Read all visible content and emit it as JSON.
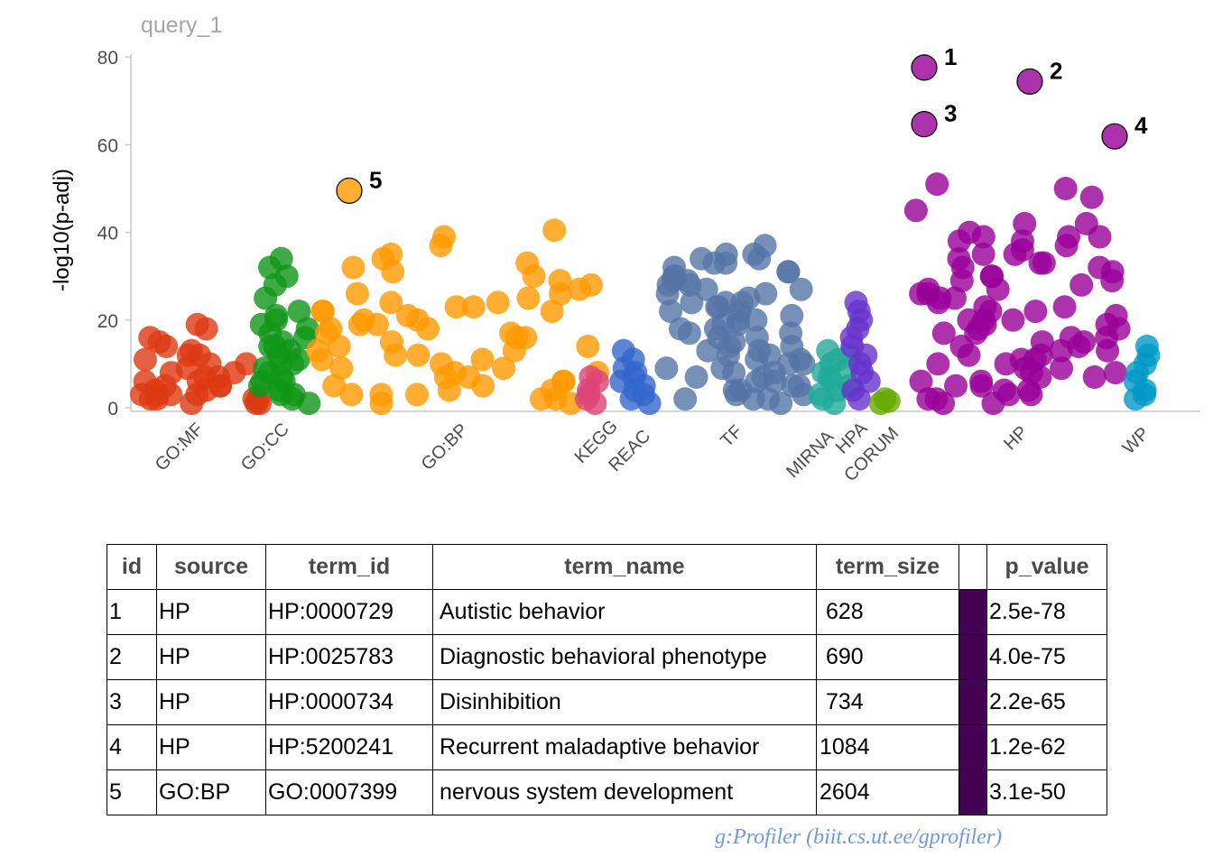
{
  "chart_data": {
    "type": "scatter",
    "title": "query_1",
    "ylabel": "-log10(p-adj)",
    "xlabel": "",
    "ylim": [
      0,
      80
    ],
    "yticks": [
      0,
      20,
      40,
      60,
      80
    ],
    "grid": false,
    "sources": [
      {
        "name": "GO:MF",
        "color": "#dc3912",
        "tick_label": "GO:MF"
      },
      {
        "name": "GO:CC",
        "color": "#109618",
        "tick_label": "GO:CC"
      },
      {
        "name": "GO:BP",
        "color": "#ff9900",
        "tick_label": "GO:BP"
      },
      {
        "name": "KEGG",
        "color": "#dd4477",
        "tick_label": "KEGG"
      },
      {
        "name": "REAC",
        "color": "#3366cc",
        "tick_label": "REAC"
      },
      {
        "name": "TF",
        "color": "#5574a6",
        "tick_label": "TF"
      },
      {
        "name": "MIRNA",
        "color": "#22aa99",
        "tick_label": "MIRNA"
      },
      {
        "name": "HPA",
        "color": "#6633cc",
        "tick_label": "HPA"
      },
      {
        "name": "CORUM",
        "color": "#66aa00",
        "tick_label": "CORUM"
      },
      {
        "name": "HP",
        "color": "#990099",
        "tick_label": "HP"
      },
      {
        "name": "WP",
        "color": "#0099c6",
        "tick_label": "WP"
      }
    ],
    "highlighted": [
      {
        "id": "1",
        "source": "HP",
        "value": 77.6
      },
      {
        "id": "2",
        "source": "HP",
        "value": 74.4
      },
      {
        "id": "3",
        "source": "HP",
        "value": 64.7
      },
      {
        "id": "4",
        "source": "HP",
        "value": 61.9
      },
      {
        "id": "5",
        "source": "GO:BP",
        "value": 49.5
      }
    ],
    "points": {
      "GO:MF": [
        19,
        18,
        16,
        14,
        13,
        12,
        11,
        10,
        10,
        9,
        8,
        8,
        7,
        6,
        6,
        5,
        5,
        4,
        4,
        3,
        3,
        3,
        2,
        2,
        2,
        1,
        1,
        15,
        12,
        7,
        5,
        3,
        2,
        1
      ],
      "GO:CC": [
        34,
        32,
        30,
        28,
        25,
        22,
        21,
        20,
        19,
        18,
        17,
        16,
        15,
        14,
        13,
        12,
        11,
        10,
        9,
        8,
        7,
        6,
        5,
        4,
        3,
        2,
        1,
        14,
        10,
        6,
        3
      ],
      "GO:BP": [
        40.5,
        39,
        37,
        35,
        34,
        33,
        32,
        31,
        30,
        29,
        28,
        27,
        26,
        25,
        24,
        23,
        22,
        21,
        20,
        19,
        18,
        17,
        16,
        15,
        14,
        13,
        12,
        11,
        10,
        9,
        8,
        7,
        6,
        5,
        4,
        3,
        2,
        1,
        24,
        22,
        19,
        16,
        13,
        9,
        6,
        3,
        22,
        20,
        17,
        14,
        11,
        7,
        4,
        2,
        26,
        23,
        18,
        12,
        8,
        5,
        3,
        1
      ],
      "KEGG": [
        7,
        6,
        4,
        3,
        2,
        1
      ],
      "REAC": [
        13,
        11,
        9,
        8,
        7,
        6,
        5,
        4,
        3,
        2,
        1
      ],
      "TF": [
        37,
        35,
        34,
        33,
        32,
        31,
        30,
        29,
        28,
        27,
        26,
        25,
        24,
        23,
        22,
        21,
        20,
        19,
        18,
        17,
        16,
        15,
        14,
        13,
        12,
        11,
        10,
        9,
        8,
        7,
        6,
        5,
        4,
        3,
        2,
        1,
        33,
        30,
        27,
        24,
        20,
        16,
        12,
        8,
        4,
        35,
        31,
        26,
        22,
        18,
        14,
        10,
        6,
        2,
        34,
        29,
        24,
        19,
        13,
        9,
        5,
        3,
        28,
        23,
        17,
        11,
        7,
        2
      ],
      "MIRNA": [
        13,
        12,
        11,
        10,
        9,
        8,
        7,
        6,
        5,
        4,
        3,
        2,
        1
      ],
      "HPA": [
        24,
        22,
        20,
        18,
        16,
        14,
        12,
        10,
        8,
        6,
        4,
        2
      ],
      "CORUM": [
        2,
        1.5,
        1
      ],
      "HP": [
        51,
        50,
        48,
        45,
        42,
        40,
        39,
        38,
        37,
        35,
        34,
        33,
        32,
        31,
        30,
        29,
        28,
        27,
        26,
        25,
        24,
        23,
        22,
        21,
        20,
        19,
        18,
        17,
        16,
        15,
        14,
        13,
        12,
        11,
        10,
        9,
        8,
        7,
        6,
        5,
        4,
        3,
        2,
        1,
        42,
        39,
        38,
        36,
        33,
        30,
        27,
        25,
        22,
        19,
        16,
        13,
        10,
        7,
        4,
        2,
        39,
        35,
        32,
        29,
        26,
        23,
        20,
        18,
        15,
        12,
        9,
        6,
        3,
        1,
        20,
        17,
        14,
        11,
        8,
        5
      ],
      "WP": [
        14,
        12,
        10,
        8,
        6,
        4,
        3,
        2
      ]
    }
  },
  "table": {
    "headers": [
      "id",
      "source",
      "term_id",
      "term_name",
      "term_size",
      "",
      "p_value"
    ],
    "swatch_color": "#440154",
    "rows": [
      {
        "id": "1",
        "source": "HP",
        "term_id": "HP:0000729",
        "term_name": "Autistic behavior",
        "term_size": "628",
        "p_value": "2.5e-78"
      },
      {
        "id": "2",
        "source": "HP",
        "term_id": "HP:0025783",
        "term_name": "Diagnostic behavioral phenotype",
        "term_size": "690",
        "p_value": "4.0e-75"
      },
      {
        "id": "3",
        "source": "HP",
        "term_id": "HP:0000734",
        "term_name": "Disinhibition",
        "term_size": "734",
        "p_value": "2.2e-65"
      },
      {
        "id": "4",
        "source": "HP",
        "term_id": "HP:5200241",
        "term_name": "Recurrent maladaptive behavior",
        "term_size": "1084",
        "p_value": "1.2e-62"
      },
      {
        "id": "5",
        "source": "GO:BP",
        "term_id": "GO:0007399",
        "term_name": "nervous system development",
        "term_size": "2604",
        "p_value": "3.1e-50"
      }
    ]
  },
  "credit": "g:Profiler (biit.cs.ut.ee/gprofiler)"
}
